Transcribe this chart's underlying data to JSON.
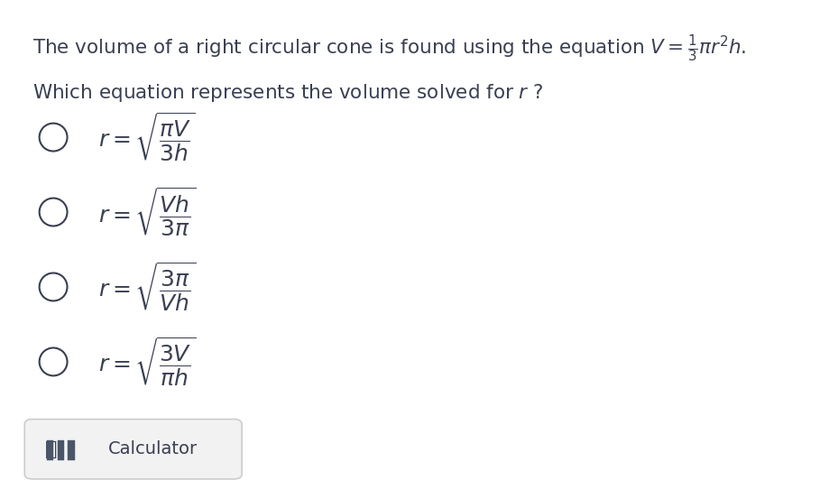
{
  "background_color": "#ffffff",
  "title_line1": "The volume of a right circular cone is found using the equation $V = \\frac{1}{3}\\pi r^2 h$.",
  "title_line2": "Which equation represents the volume solved for $r$ ?",
  "options": [
    "$r = \\sqrt{\\dfrac{\\pi V}{3h}}$",
    "$r = \\sqrt{\\dfrac{Vh}{3\\pi}}$",
    "$r = \\sqrt{\\dfrac{3\\pi}{Vh}}$",
    "$r = \\sqrt{\\dfrac{3V}{\\pi h}}$"
  ],
  "text_color": "#3a3f52",
  "circle_color": "#3a3f52",
  "font_size_title": 15.5,
  "font_size_option": 18,
  "fig_width": 9.09,
  "fig_height": 5.53,
  "dpi": 100
}
